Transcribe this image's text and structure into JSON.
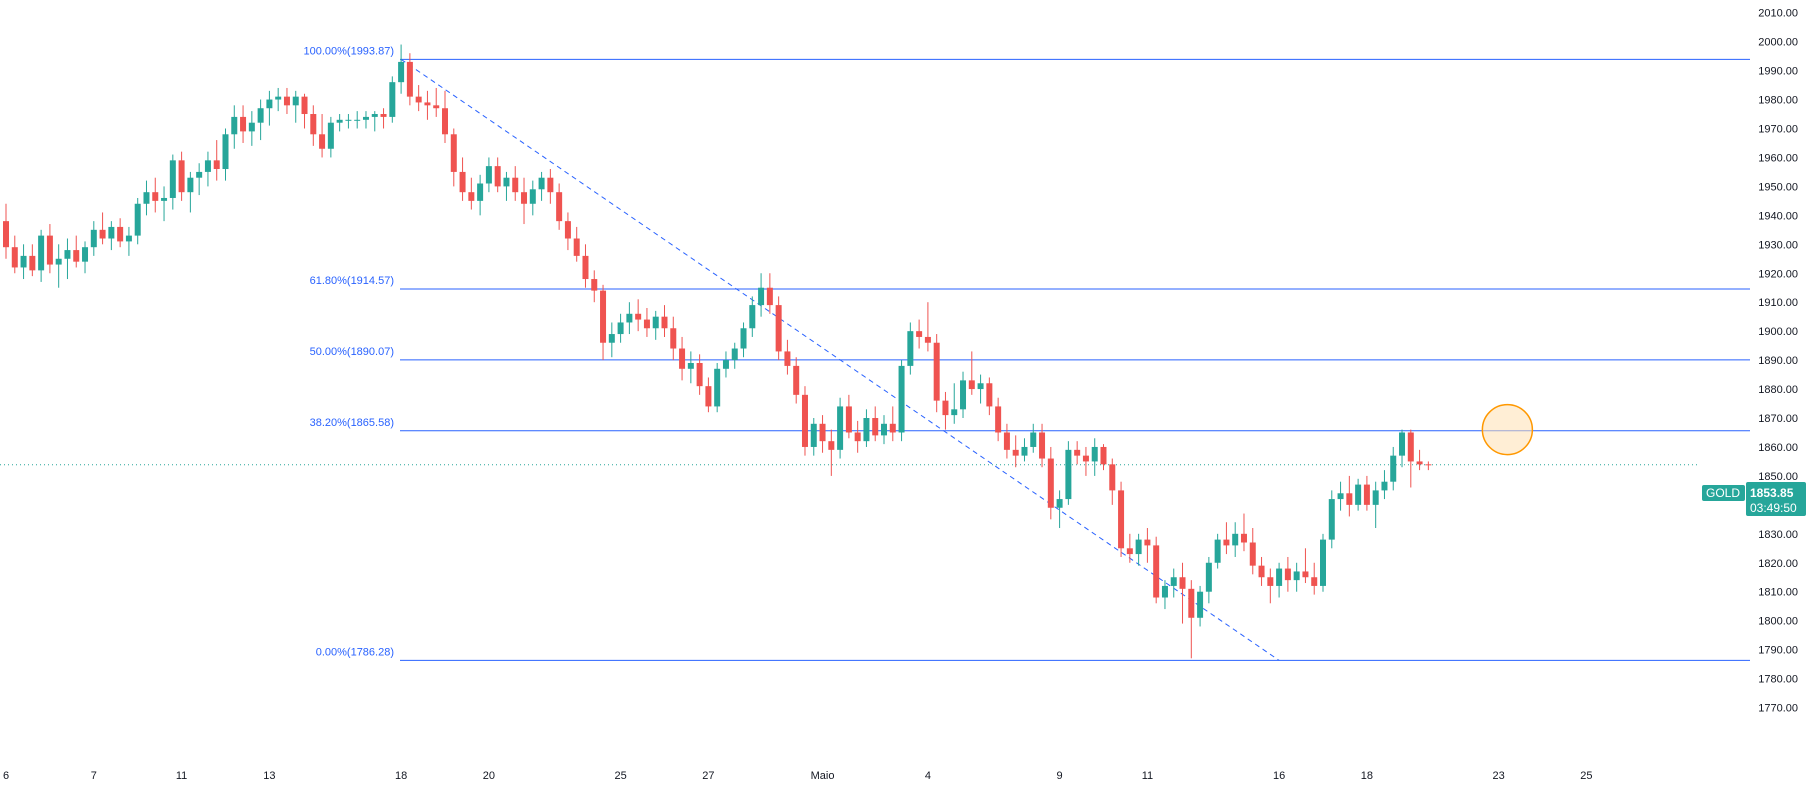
{
  "instrument": {
    "symbol": "GOLD",
    "last_price": "1853.85",
    "countdown": "03:49:50"
  },
  "colors": {
    "up": "#26a69a",
    "down": "#ef5350",
    "fib": "#2962ff",
    "last_line": "#26a69a",
    "highlight_fill": "#ffe0b2",
    "highlight_stroke": "#ff9800"
  },
  "chart_data": {
    "type": "candlestick",
    "y_axis": {
      "range": [
        1765,
        2013
      ],
      "ticks": [
        "2010.00",
        "2000.00",
        "1990.00",
        "1980.00",
        "1970.00",
        "1960.00",
        "1950.00",
        "1940.00",
        "1930.00",
        "1920.00",
        "1910.00",
        "1900.00",
        "1890.00",
        "1880.00",
        "1870.00",
        "1860.00",
        "1850.00",
        "1840.00",
        "1830.00",
        "1820.00",
        "1810.00",
        "1800.00",
        "1790.00",
        "1780.00",
        "1770.00"
      ]
    },
    "x_axis": {
      "labels": [
        {
          "text": "6",
          "bar": 0
        },
        {
          "text": "7",
          "bar": 10
        },
        {
          "text": "11",
          "bar": 20
        },
        {
          "text": "13",
          "bar": 30
        },
        {
          "text": "18",
          "bar": 45
        },
        {
          "text": "20",
          "bar": 55
        },
        {
          "text": "25",
          "bar": 70
        },
        {
          "text": "27",
          "bar": 80
        },
        {
          "text": "Maio",
          "bar": 93
        },
        {
          "text": "4",
          "bar": 105
        },
        {
          "text": "9",
          "bar": 120
        },
        {
          "text": "11",
          "bar": 130
        },
        {
          "text": "16",
          "bar": 145
        },
        {
          "text": "18",
          "bar": 155
        },
        {
          "text": "23",
          "bar": 170
        },
        {
          "text": "25",
          "bar": 180
        }
      ]
    },
    "fibonacci": [
      {
        "label": "100.00%(1993.87)",
        "value": 1993.87
      },
      {
        "label": "61.80%(1914.57)",
        "value": 1914.57
      },
      {
        "label": "50.00%(1890.07)",
        "value": 1890.07
      },
      {
        "label": "38.20%(1865.58)",
        "value": 1865.58
      },
      {
        "label": "0.00%(1786.28)",
        "value": 1786.28
      }
    ],
    "trendline": {
      "from": {
        "bar": 45,
        "value": 1993.87
      },
      "to": {
        "bar": 145,
        "value": 1786.28
      }
    },
    "highlight": {
      "bar": 171,
      "value": 1866
    },
    "last_price": 1853.85,
    "candles": [
      [
        1938,
        1944,
        1925,
        1929
      ],
      [
        1929,
        1933,
        1920,
        1922
      ],
      [
        1922,
        1930,
        1918,
        1926
      ],
      [
        1926,
        1930,
        1919,
        1921
      ],
      [
        1921,
        1935,
        1917,
        1933
      ],
      [
        1933,
        1937,
        1920,
        1923
      ],
      [
        1923,
        1930,
        1915,
        1925
      ],
      [
        1925,
        1932,
        1918,
        1928
      ],
      [
        1928,
        1933,
        1922,
        1924
      ],
      [
        1924,
        1931,
        1920,
        1929
      ],
      [
        1929,
        1938,
        1926,
        1935
      ],
      [
        1935,
        1941,
        1930,
        1932
      ],
      [
        1932,
        1938,
        1928,
        1936
      ],
      [
        1936,
        1939,
        1929,
        1931
      ],
      [
        1931,
        1936,
        1926,
        1933
      ],
      [
        1933,
        1946,
        1930,
        1944
      ],
      [
        1944,
        1952,
        1940,
        1948
      ],
      [
        1948,
        1953,
        1941,
        1945
      ],
      [
        1945,
        1950,
        1938,
        1946
      ],
      [
        1946,
        1961,
        1942,
        1959
      ],
      [
        1959,
        1962,
        1945,
        1948
      ],
      [
        1948,
        1955,
        1941,
        1953
      ],
      [
        1953,
        1958,
        1947,
        1955
      ],
      [
        1955,
        1962,
        1950,
        1959
      ],
      [
        1959,
        1966,
        1952,
        1956
      ],
      [
        1956,
        1970,
        1952,
        1968
      ],
      [
        1968,
        1978,
        1963,
        1974
      ],
      [
        1974,
        1978,
        1965,
        1969
      ],
      [
        1969,
        1976,
        1964,
        1972
      ],
      [
        1972,
        1980,
        1966,
        1977
      ],
      [
        1977,
        1983,
        1971,
        1980
      ],
      [
        1980,
        1984,
        1976,
        1981
      ],
      [
        1981,
        1984,
        1975,
        1978
      ],
      [
        1978,
        1983,
        1972,
        1981
      ],
      [
        1981,
        1982,
        1970,
        1975
      ],
      [
        1975,
        1978,
        1964,
        1968
      ],
      [
        1968,
        1975,
        1960,
        1963
      ],
      [
        1963,
        1974,
        1960,
        1972
      ],
      [
        1972,
        1975,
        1969,
        1973
      ],
      [
        1973,
        1975,
        1970,
        1973
      ],
      [
        1973,
        1976,
        1970,
        1973
      ],
      [
        1973,
        1976,
        1970,
        1974
      ],
      [
        1974,
        1976,
        1969,
        1975
      ],
      [
        1975,
        1977,
        1970,
        1974
      ],
      [
        1974,
        1988,
        1972,
        1986
      ],
      [
        1986,
        1999,
        1982,
        1993
      ],
      [
        1993,
        1996,
        1978,
        1981
      ],
      [
        1981,
        1985,
        1976,
        1979
      ],
      [
        1979,
        1983,
        1973,
        1978
      ],
      [
        1978,
        1984,
        1974,
        1977
      ],
      [
        1977,
        1983,
        1965,
        1968
      ],
      [
        1968,
        1970,
        1950,
        1955
      ],
      [
        1955,
        1960,
        1945,
        1948
      ],
      [
        1948,
        1953,
        1942,
        1945
      ],
      [
        1945,
        1954,
        1940,
        1951
      ],
      [
        1951,
        1960,
        1948,
        1957
      ],
      [
        1957,
        1960,
        1948,
        1950
      ],
      [
        1950,
        1955,
        1945,
        1953
      ],
      [
        1953,
        1957,
        1945,
        1948
      ],
      [
        1948,
        1953,
        1937,
        1944
      ],
      [
        1944,
        1952,
        1940,
        1949
      ],
      [
        1949,
        1955,
        1945,
        1953
      ],
      [
        1953,
        1956,
        1944,
        1948
      ],
      [
        1948,
        1951,
        1935,
        1938
      ],
      [
        1938,
        1941,
        1928,
        1932
      ],
      [
        1932,
        1936,
        1924,
        1926
      ],
      [
        1926,
        1930,
        1915,
        1918
      ],
      [
        1918,
        1921,
        1910,
        1914
      ],
      [
        1914,
        1916,
        1890,
        1896
      ],
      [
        1896,
        1903,
        1891,
        1899
      ],
      [
        1899,
        1906,
        1896,
        1903
      ],
      [
        1903,
        1910,
        1899,
        1906
      ],
      [
        1906,
        1911,
        1900,
        1904
      ],
      [
        1904,
        1908,
        1898,
        1901
      ],
      [
        1901,
        1907,
        1897,
        1905
      ],
      [
        1905,
        1909,
        1898,
        1901
      ],
      [
        1901,
        1905,
        1890,
        1894
      ],
      [
        1894,
        1898,
        1883,
        1887
      ],
      [
        1887,
        1893,
        1882,
        1889
      ],
      [
        1889,
        1892,
        1878,
        1881
      ],
      [
        1881,
        1884,
        1872,
        1874
      ],
      [
        1874,
        1889,
        1872,
        1887
      ],
      [
        1887,
        1893,
        1884,
        1890
      ],
      [
        1890,
        1896,
        1887,
        1894
      ],
      [
        1894,
        1903,
        1891,
        1901
      ],
      [
        1901,
        1912,
        1898,
        1909
      ],
      [
        1909,
        1920,
        1905,
        1915
      ],
      [
        1915,
        1920,
        1906,
        1909
      ],
      [
        1909,
        1912,
        1890,
        1893
      ],
      [
        1893,
        1897,
        1885,
        1888
      ],
      [
        1888,
        1891,
        1875,
        1878
      ],
      [
        1878,
        1881,
        1857,
        1860
      ],
      [
        1860,
        1870,
        1857,
        1868
      ],
      [
        1868,
        1871,
        1858,
        1862
      ],
      [
        1862,
        1866,
        1850,
        1859
      ],
      [
        1859,
        1877,
        1856,
        1874
      ],
      [
        1874,
        1878,
        1863,
        1865
      ],
      [
        1865,
        1869,
        1858,
        1862
      ],
      [
        1862,
        1873,
        1860,
        1870
      ],
      [
        1870,
        1874,
        1862,
        1864
      ],
      [
        1864,
        1871,
        1861,
        1868
      ],
      [
        1868,
        1874,
        1862,
        1865
      ],
      [
        1865,
        1890,
        1862,
        1888
      ],
      [
        1888,
        1903,
        1885,
        1900
      ],
      [
        1900,
        1904,
        1894,
        1898
      ],
      [
        1898,
        1910,
        1893,
        1896
      ],
      [
        1896,
        1899,
        1872,
        1876
      ],
      [
        1876,
        1879,
        1866,
        1871
      ],
      [
        1871,
        1882,
        1868,
        1873
      ],
      [
        1873,
        1886,
        1870,
        1883
      ],
      [
        1883,
        1893,
        1878,
        1880
      ],
      [
        1880,
        1885,
        1875,
        1882
      ],
      [
        1882,
        1884,
        1871,
        1874
      ],
      [
        1874,
        1877,
        1862,
        1865
      ],
      [
        1865,
        1868,
        1856,
        1859
      ],
      [
        1859,
        1864,
        1853,
        1857
      ],
      [
        1857,
        1863,
        1855,
        1860
      ],
      [
        1860,
        1868,
        1858,
        1865
      ],
      [
        1865,
        1868,
        1853,
        1856
      ],
      [
        1856,
        1860,
        1835,
        1839
      ],
      [
        1839,
        1845,
        1832,
        1842
      ],
      [
        1842,
        1862,
        1840,
        1859
      ],
      [
        1859,
        1862,
        1854,
        1857
      ],
      [
        1857,
        1860,
        1850,
        1855
      ],
      [
        1855,
        1863,
        1850,
        1860
      ],
      [
        1860,
        1861,
        1852,
        1854
      ],
      [
        1854,
        1856,
        1840,
        1845
      ],
      [
        1845,
        1848,
        1822,
        1825
      ],
      [
        1825,
        1830,
        1820,
        1823
      ],
      [
        1823,
        1830,
        1819,
        1828
      ],
      [
        1828,
        1832,
        1820,
        1826
      ],
      [
        1826,
        1829,
        1806,
        1808
      ],
      [
        1808,
        1814,
        1804,
        1812
      ],
      [
        1812,
        1818,
        1808,
        1815
      ],
      [
        1815,
        1820,
        1799,
        1811
      ],
      [
        1811,
        1814,
        1787,
        1801
      ],
      [
        1801,
        1812,
        1798,
        1810
      ],
      [
        1810,
        1822,
        1806,
        1820
      ],
      [
        1820,
        1830,
        1818,
        1828
      ],
      [
        1828,
        1834,
        1823,
        1826
      ],
      [
        1826,
        1834,
        1822,
        1830
      ],
      [
        1830,
        1837,
        1824,
        1827
      ],
      [
        1827,
        1832,
        1816,
        1819
      ],
      [
        1819,
        1822,
        1812,
        1815
      ],
      [
        1815,
        1818,
        1806,
        1812
      ],
      [
        1812,
        1820,
        1808,
        1818
      ],
      [
        1818,
        1822,
        1810,
        1814
      ],
      [
        1814,
        1820,
        1810,
        1817
      ],
      [
        1817,
        1825,
        1813,
        1815
      ],
      [
        1815,
        1820,
        1809,
        1812
      ],
      [
        1812,
        1830,
        1810,
        1828
      ],
      [
        1828,
        1845,
        1825,
        1842
      ],
      [
        1842,
        1848,
        1838,
        1844
      ],
      [
        1844,
        1850,
        1836,
        1840
      ],
      [
        1840,
        1849,
        1838,
        1847
      ],
      [
        1847,
        1850,
        1838,
        1840
      ],
      [
        1840,
        1848,
        1832,
        1845
      ],
      [
        1845,
        1852,
        1842,
        1848
      ],
      [
        1848,
        1860,
        1845,
        1857
      ],
      [
        1857,
        1866,
        1853,
        1865
      ],
      [
        1865,
        1866,
        1846,
        1855
      ],
      [
        1855,
        1859,
        1852,
        1854
      ],
      [
        1854,
        1855,
        1852,
        1853.85
      ]
    ]
  }
}
